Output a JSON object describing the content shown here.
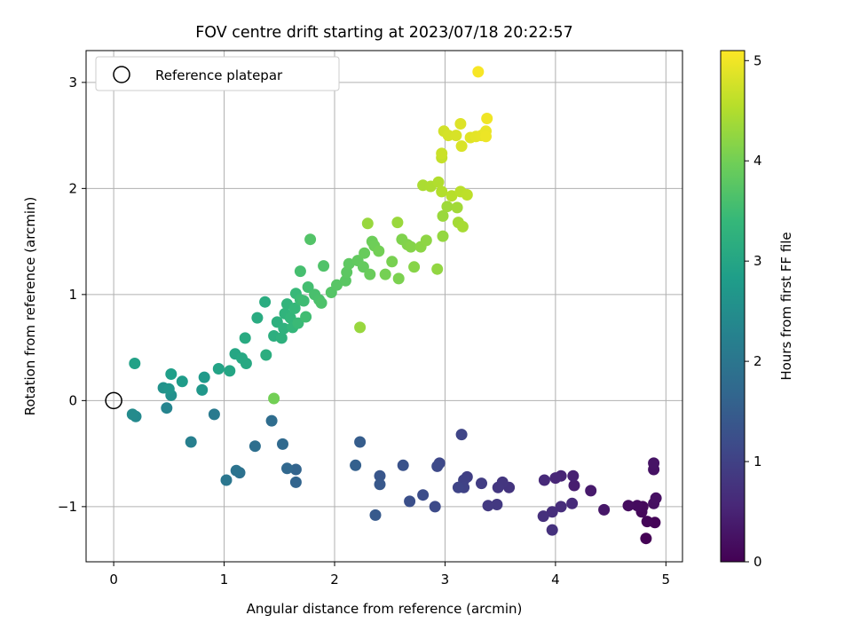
{
  "chart_data": {
    "type": "scatter",
    "title": "FOV centre drift starting at 2023/07/18 20:22:57",
    "xlabel": "Angular distance from reference (arcmin)",
    "ylabel": "Rotation from reference (arcmin)",
    "xlim": [
      -0.25,
      5.15
    ],
    "ylim": [
      -1.52,
      3.3
    ],
    "xticks": [
      0,
      1,
      2,
      3,
      4,
      5
    ],
    "yticks": [
      -1,
      0,
      1,
      2,
      3
    ],
    "grid": true,
    "legend": {
      "placement": "top-left",
      "entries": [
        "Reference platepar"
      ]
    },
    "reference_point": {
      "x": 0,
      "y": 0,
      "marker": "open-circle",
      "color": "#000000"
    },
    "colorbar": {
      "label": "Hours from first FF file",
      "range": [
        0,
        5.1
      ],
      "ticks": [
        0,
        1,
        2,
        3,
        4,
        5
      ],
      "colormap": "viridis",
      "stops": [
        "#440154",
        "#482878",
        "#3e4989",
        "#31688e",
        "#26828e",
        "#1f9e89",
        "#35b779",
        "#6ece58",
        "#b5de2b",
        "#fde725"
      ]
    },
    "series": [
      {
        "points": [
          {
            "x": 4.82,
            "y": -1.3,
            "h": 0.02
          },
          {
            "x": 4.9,
            "y": -1.15,
            "h": 0.05
          },
          {
            "x": 4.83,
            "y": -1.14,
            "h": 0.07
          },
          {
            "x": 4.78,
            "y": -1.05,
            "h": 0.1
          },
          {
            "x": 4.79,
            "y": -1.0,
            "h": 0.12
          },
          {
            "x": 4.74,
            "y": -0.99,
            "h": 0.15
          },
          {
            "x": 4.66,
            "y": -0.99,
            "h": 0.17
          },
          {
            "x": 4.89,
            "y": -0.97,
            "h": 0.2
          },
          {
            "x": 4.91,
            "y": -0.92,
            "h": 0.22
          },
          {
            "x": 4.89,
            "y": -0.65,
            "h": 0.25
          },
          {
            "x": 4.89,
            "y": -0.59,
            "h": 0.27
          },
          {
            "x": 4.44,
            "y": -1.03,
            "h": 0.32
          },
          {
            "x": 4.32,
            "y": -0.85,
            "h": 0.37
          },
          {
            "x": 4.17,
            "y": -0.8,
            "h": 0.42
          },
          {
            "x": 4.16,
            "y": -0.71,
            "h": 0.47
          },
          {
            "x": 4.05,
            "y": -0.71,
            "h": 0.52
          },
          {
            "x": 4.0,
            "y": -0.73,
            "h": 0.55
          },
          {
            "x": 3.9,
            "y": -0.75,
            "h": 0.6
          },
          {
            "x": 4.15,
            "y": -0.97,
            "h": 0.62
          },
          {
            "x": 4.05,
            "y": -1.0,
            "h": 0.65
          },
          {
            "x": 3.97,
            "y": -1.05,
            "h": 0.67
          },
          {
            "x": 3.89,
            "y": -1.09,
            "h": 0.7
          },
          {
            "x": 3.97,
            "y": -1.22,
            "h": 0.72
          },
          {
            "x": 3.58,
            "y": -0.82,
            "h": 0.77
          },
          {
            "x": 3.52,
            "y": -0.77,
            "h": 0.8
          },
          {
            "x": 3.48,
            "y": -0.82,
            "h": 0.82
          },
          {
            "x": 3.47,
            "y": -0.98,
            "h": 0.85
          },
          {
            "x": 3.39,
            "y": -0.99,
            "h": 0.87
          },
          {
            "x": 3.33,
            "y": -0.78,
            "h": 0.92
          },
          {
            "x": 3.2,
            "y": -0.72,
            "h": 0.97
          },
          {
            "x": 3.17,
            "y": -0.75,
            "h": 1.0
          },
          {
            "x": 3.17,
            "y": -0.82,
            "h": 1.02
          },
          {
            "x": 3.12,
            "y": -0.82,
            "h": 1.05
          },
          {
            "x": 3.15,
            "y": -0.32,
            "h": 1.07
          },
          {
            "x": 2.95,
            "y": -0.59,
            "h": 1.12
          },
          {
            "x": 2.93,
            "y": -0.62,
            "h": 1.15
          },
          {
            "x": 2.91,
            "y": -1.0,
            "h": 1.17
          },
          {
            "x": 2.8,
            "y": -0.89,
            "h": 1.2
          },
          {
            "x": 2.68,
            "y": -0.95,
            "h": 1.25
          },
          {
            "x": 2.62,
            "y": -0.61,
            "h": 1.3
          },
          {
            "x": 2.41,
            "y": -0.71,
            "h": 1.37
          },
          {
            "x": 2.41,
            "y": -0.79,
            "h": 1.4
          },
          {
            "x": 2.37,
            "y": -1.08,
            "h": 1.45
          },
          {
            "x": 2.23,
            "y": -0.39,
            "h": 1.5
          },
          {
            "x": 2.19,
            "y": -0.61,
            "h": 1.55
          },
          {
            "x": 1.65,
            "y": -0.65,
            "h": 1.62
          },
          {
            "x": 1.65,
            "y": -0.77,
            "h": 1.65
          },
          {
            "x": 1.57,
            "y": -0.64,
            "h": 1.7
          },
          {
            "x": 1.53,
            "y": -0.41,
            "h": 1.75
          },
          {
            "x": 1.43,
            "y": -0.19,
            "h": 1.8
          },
          {
            "x": 1.28,
            "y": -0.43,
            "h": 1.85
          },
          {
            "x": 1.14,
            "y": -0.68,
            "h": 1.9
          },
          {
            "x": 1.11,
            "y": -0.66,
            "h": 1.95
          },
          {
            "x": 1.02,
            "y": -0.75,
            "h": 2.0
          },
          {
            "x": 0.91,
            "y": -0.13,
            "h": 2.1
          },
          {
            "x": 0.7,
            "y": -0.39,
            "h": 2.2
          },
          {
            "x": 0.48,
            "y": -0.07,
            "h": 2.3
          },
          {
            "x": 0.2,
            "y": -0.15,
            "h": 2.4
          },
          {
            "x": 0.17,
            "y": -0.13,
            "h": 2.45
          },
          {
            "x": 0.52,
            "y": 0.05,
            "h": 2.55
          },
          {
            "x": 0.45,
            "y": 0.12,
            "h": 2.6
          },
          {
            "x": 0.5,
            "y": 0.11,
            "h": 2.65
          },
          {
            "x": 0.8,
            "y": 0.1,
            "h": 2.7
          },
          {
            "x": 0.82,
            "y": 0.22,
            "h": 2.75
          },
          {
            "x": 0.62,
            "y": 0.18,
            "h": 2.8
          },
          {
            "x": 0.52,
            "y": 0.25,
            "h": 2.85
          },
          {
            "x": 0.19,
            "y": 0.35,
            "h": 2.9
          },
          {
            "x": 0.95,
            "y": 0.3,
            "h": 2.95
          },
          {
            "x": 1.05,
            "y": 0.28,
            "h": 3.0
          },
          {
            "x": 1.1,
            "y": 0.44,
            "h": 3.02
          },
          {
            "x": 1.16,
            "y": 0.4,
            "h": 3.05
          },
          {
            "x": 1.2,
            "y": 0.35,
            "h": 3.07
          },
          {
            "x": 1.19,
            "y": 0.59,
            "h": 3.1
          },
          {
            "x": 1.3,
            "y": 0.78,
            "h": 3.12
          },
          {
            "x": 1.37,
            "y": 0.93,
            "h": 3.15
          },
          {
            "x": 1.38,
            "y": 0.43,
            "h": 3.17
          },
          {
            "x": 1.45,
            "y": 0.61,
            "h": 3.2
          },
          {
            "x": 1.48,
            "y": 0.74,
            "h": 3.22
          },
          {
            "x": 1.52,
            "y": 0.59,
            "h": 3.25
          },
          {
            "x": 1.54,
            "y": 0.68,
            "h": 3.27
          },
          {
            "x": 1.55,
            "y": 0.82,
            "h": 3.3
          },
          {
            "x": 1.57,
            "y": 0.91,
            "h": 3.32
          },
          {
            "x": 1.6,
            "y": 0.78,
            "h": 3.35
          },
          {
            "x": 1.62,
            "y": 0.69,
            "h": 3.37
          },
          {
            "x": 1.64,
            "y": 0.87,
            "h": 3.4
          },
          {
            "x": 1.65,
            "y": 1.01,
            "h": 3.42
          },
          {
            "x": 1.67,
            "y": 0.73,
            "h": 3.45
          },
          {
            "x": 1.69,
            "y": 0.95,
            "h": 3.47
          },
          {
            "x": 1.72,
            "y": 0.94,
            "h": 3.5
          },
          {
            "x": 1.74,
            "y": 0.79,
            "h": 3.52
          },
          {
            "x": 1.76,
            "y": 1.07,
            "h": 3.55
          },
          {
            "x": 1.69,
            "y": 1.22,
            "h": 3.57
          },
          {
            "x": 1.82,
            "y": 1.0,
            "h": 3.6
          },
          {
            "x": 1.86,
            "y": 0.95,
            "h": 3.62
          },
          {
            "x": 1.88,
            "y": 0.92,
            "h": 3.65
          },
          {
            "x": 1.9,
            "y": 1.27,
            "h": 3.67
          },
          {
            "x": 1.78,
            "y": 1.52,
            "h": 3.7
          },
          {
            "x": 1.97,
            "y": 1.02,
            "h": 3.72
          },
          {
            "x": 2.02,
            "y": 1.09,
            "h": 3.75
          },
          {
            "x": 2.1,
            "y": 1.13,
            "h": 3.77
          },
          {
            "x": 2.11,
            "y": 1.21,
            "h": 3.8
          },
          {
            "x": 2.13,
            "y": 1.29,
            "h": 3.82
          },
          {
            "x": 2.21,
            "y": 1.32,
            "h": 3.85
          },
          {
            "x": 2.26,
            "y": 1.26,
            "h": 3.87
          },
          {
            "x": 2.27,
            "y": 1.39,
            "h": 3.9
          },
          {
            "x": 2.32,
            "y": 1.19,
            "h": 3.92
          },
          {
            "x": 2.34,
            "y": 1.5,
            "h": 3.95
          },
          {
            "x": 2.36,
            "y": 1.46,
            "h": 3.97
          },
          {
            "x": 2.4,
            "y": 1.41,
            "h": 4.0
          },
          {
            "x": 2.46,
            "y": 1.19,
            "h": 4.02
          },
          {
            "x": 2.52,
            "y": 1.31,
            "h": 4.05
          },
          {
            "x": 2.58,
            "y": 1.15,
            "h": 4.07
          },
          {
            "x": 2.61,
            "y": 1.52,
            "h": 4.1
          },
          {
            "x": 2.66,
            "y": 1.47,
            "h": 4.12
          },
          {
            "x": 2.69,
            "y": 1.45,
            "h": 4.15
          },
          {
            "x": 2.72,
            "y": 1.26,
            "h": 4.17
          },
          {
            "x": 2.78,
            "y": 1.45,
            "h": 4.2
          },
          {
            "x": 2.83,
            "y": 1.51,
            "h": 4.22
          },
          {
            "x": 2.93,
            "y": 1.24,
            "h": 4.25
          },
          {
            "x": 2.98,
            "y": 1.55,
            "h": 4.27
          },
          {
            "x": 1.45,
            "y": 0.02,
            "h": 4.0
          },
          {
            "x": 2.23,
            "y": 0.69,
            "h": 4.3
          },
          {
            "x": 2.3,
            "y": 1.67,
            "h": 4.3
          },
          {
            "x": 2.57,
            "y": 1.68,
            "h": 4.32
          },
          {
            "x": 2.98,
            "y": 1.74,
            "h": 4.32
          },
          {
            "x": 3.02,
            "y": 1.83,
            "h": 4.35
          },
          {
            "x": 3.11,
            "y": 1.82,
            "h": 4.37
          },
          {
            "x": 3.12,
            "y": 1.68,
            "h": 4.4
          },
          {
            "x": 3.16,
            "y": 1.64,
            "h": 4.42
          },
          {
            "x": 2.8,
            "y": 2.03,
            "h": 4.45
          },
          {
            "x": 2.87,
            "y": 2.02,
            "h": 4.47
          },
          {
            "x": 2.94,
            "y": 2.06,
            "h": 4.5
          },
          {
            "x": 2.97,
            "y": 1.97,
            "h": 4.52
          },
          {
            "x": 3.06,
            "y": 1.93,
            "h": 4.55
          },
          {
            "x": 3.14,
            "y": 1.97,
            "h": 4.57
          },
          {
            "x": 3.2,
            "y": 1.94,
            "h": 4.6
          },
          {
            "x": 2.97,
            "y": 2.29,
            "h": 4.65
          },
          {
            "x": 2.97,
            "y": 2.33,
            "h": 4.7
          },
          {
            "x": 2.99,
            "y": 2.54,
            "h": 4.75
          },
          {
            "x": 3.03,
            "y": 2.5,
            "h": 4.78
          },
          {
            "x": 3.1,
            "y": 2.5,
            "h": 4.8
          },
          {
            "x": 3.15,
            "y": 2.4,
            "h": 4.82
          },
          {
            "x": 3.14,
            "y": 2.61,
            "h": 4.85
          },
          {
            "x": 3.23,
            "y": 2.48,
            "h": 4.87
          },
          {
            "x": 3.28,
            "y": 2.49,
            "h": 4.9
          },
          {
            "x": 3.33,
            "y": 2.5,
            "h": 4.92
          },
          {
            "x": 3.37,
            "y": 2.54,
            "h": 4.95
          },
          {
            "x": 3.37,
            "y": 2.49,
            "h": 4.97
          },
          {
            "x": 3.38,
            "y": 2.66,
            "h": 5.0
          },
          {
            "x": 3.3,
            "y": 3.1,
            "h": 5.05
          }
        ]
      }
    ]
  }
}
